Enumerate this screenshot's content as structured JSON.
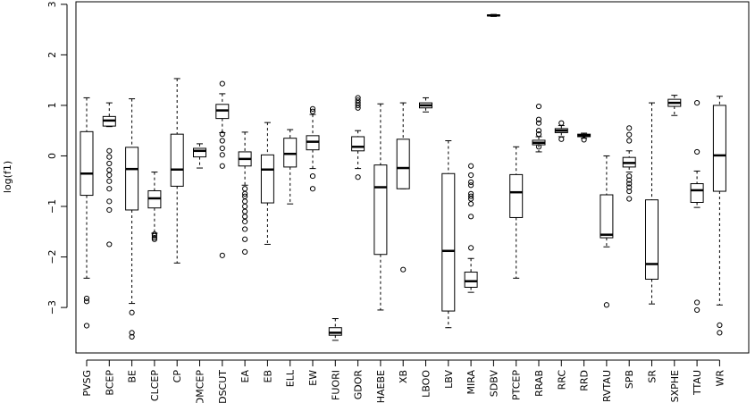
{
  "chart_data": {
    "type": "boxplot",
    "ylabel": "log(f1)",
    "ylim": [
      -3.9,
      3.05
    ],
    "yticks": [
      -3,
      -2,
      -1,
      0,
      1,
      2,
      3
    ],
    "grid": false,
    "categories": [
      "PVSG",
      "BCEP",
      "BE",
      "CLCEP",
      "CP",
      "DMCEP",
      "DSCUT",
      "EA",
      "EB",
      "ELL",
      "EW",
      "FUORI",
      "GDOR",
      "HAEBE",
      "XB",
      "LBOO",
      "LBV",
      "MIRA",
      "SDBV",
      "PTCEP",
      "RRAB",
      "RRC",
      "RRD",
      "RVTAU",
      "SPB",
      "SR",
      "SXPHE",
      "TTAU",
      "WR"
    ],
    "boxes": [
      {
        "lo": -2.42,
        "q1": -0.78,
        "med": -0.35,
        "q3": 0.48,
        "hi": 1.15,
        "out": [
          -2.82,
          -2.88,
          -3.36
        ]
      },
      {
        "lo": 0.58,
        "q1": 0.59,
        "med": 0.7,
        "q3": 0.78,
        "hi": 1.05,
        "out": [
          0.1,
          -0.02,
          -0.15,
          -0.28,
          -0.38,
          -0.5,
          -0.65,
          -0.9,
          -1.07,
          -1.75
        ]
      },
      {
        "lo": -2.92,
        "q1": -1.07,
        "med": -0.26,
        "q3": 0.17,
        "hi": 1.13,
        "out": [
          -3.1,
          -3.5,
          -3.58
        ]
      },
      {
        "lo": -1.53,
        "q1": -1.03,
        "med": -0.84,
        "q3": -0.69,
        "hi": -0.32,
        "out": [
          -1.55,
          -1.58,
          -1.62,
          -1.65
        ]
      },
      {
        "lo": -2.12,
        "q1": -0.6,
        "med": -0.27,
        "q3": 0.43,
        "hi": 1.53,
        "out": []
      },
      {
        "lo": -0.24,
        "q1": -0.02,
        "med": 0.1,
        "q3": 0.15,
        "hi": 0.24,
        "out": []
      },
      {
        "lo": 0.46,
        "q1": 0.74,
        "med": 0.9,
        "q3": 1.02,
        "hi": 1.23,
        "out": [
          1.43,
          0.43,
          0.3,
          0.15,
          0.02,
          -0.2,
          -1.97
        ]
      },
      {
        "lo": -0.58,
        "q1": -0.2,
        "med": -0.06,
        "q3": 0.08,
        "hi": 0.47,
        "out": [
          -0.65,
          -0.75,
          -0.8,
          -0.9,
          -1.0,
          -1.1,
          -1.2,
          -1.3,
          -1.45,
          -1.65,
          -1.9
        ]
      },
      {
        "lo": -1.75,
        "q1": -0.93,
        "med": -0.27,
        "q3": 0.02,
        "hi": 0.66,
        "out": []
      },
      {
        "lo": -0.95,
        "q1": -0.22,
        "med": 0.04,
        "q3": 0.35,
        "hi": 0.52,
        "out": []
      },
      {
        "lo": -0.25,
        "q1": 0.12,
        "med": 0.28,
        "q3": 0.4,
        "hi": 0.82,
        "out": [
          0.93,
          0.88,
          -0.4,
          -0.65
        ]
      },
      {
        "lo": -3.65,
        "q1": -3.55,
        "med": -3.5,
        "q3": -3.4,
        "hi": -3.22,
        "out": []
      },
      {
        "lo": -0.25,
        "q1": 0.1,
        "med": 0.18,
        "q3": 0.38,
        "hi": 0.5,
        "out": [
          1.15,
          1.1,
          1.05,
          1.0,
          0.95,
          -0.42
        ]
      },
      {
        "lo": -3.05,
        "q1": -1.95,
        "med": -0.62,
        "q3": -0.18,
        "hi": 1.03,
        "out": []
      },
      {
        "lo": -0.65,
        "q1": -0.65,
        "med": -0.24,
        "q3": 0.33,
        "hi": 1.05,
        "out": [
          -2.25
        ]
      },
      {
        "lo": 0.87,
        "q1": 0.95,
        "med": 1.0,
        "q3": 1.05,
        "hi": 1.15,
        "out": []
      },
      {
        "lo": -3.4,
        "q1": -3.07,
        "med": -1.88,
        "q3": -0.35,
        "hi": 0.3,
        "out": []
      },
      {
        "lo": -2.7,
        "q1": -2.6,
        "med": -2.48,
        "q3": -2.3,
        "hi": -2.03,
        "out": [
          -0.2,
          -0.38,
          -0.52,
          -0.58,
          -0.75,
          -0.8,
          -0.85,
          -0.95,
          -1.2,
          -1.82
        ]
      },
      {
        "lo": 2.76,
        "q1": 2.77,
        "med": 2.78,
        "q3": 2.79,
        "hi": 2.8,
        "out": []
      },
      {
        "lo": -2.42,
        "q1": -1.22,
        "med": -0.72,
        "q3": -0.37,
        "hi": 0.18,
        "out": []
      },
      {
        "lo": 0.08,
        "q1": 0.22,
        "med": 0.26,
        "q3": 0.31,
        "hi": 0.38,
        "out": [
          0.98,
          0.72,
          0.65,
          0.5,
          0.43,
          0.18
        ]
      },
      {
        "lo": 0.38,
        "q1": 0.46,
        "med": 0.5,
        "q3": 0.54,
        "hi": 0.6,
        "out": [
          0.65,
          0.33
        ]
      },
      {
        "lo": 0.35,
        "q1": 0.38,
        "med": 0.41,
        "q3": 0.43,
        "hi": 0.45,
        "out": [
          0.32
        ]
      },
      {
        "lo": -1.8,
        "q1": -1.62,
        "med": -1.56,
        "q3": -0.77,
        "hi": 0.0,
        "out": [
          -2.95
        ]
      },
      {
        "lo": -0.32,
        "q1": -0.22,
        "med": -0.14,
        "q3": -0.03,
        "hi": 0.1,
        "out": [
          0.55,
          0.42,
          0.3,
          -0.4,
          -0.48,
          -0.55,
          -0.62,
          -0.7,
          -0.85
        ]
      },
      {
        "lo": -2.93,
        "q1": -2.44,
        "med": -2.14,
        "q3": -0.87,
        "hi": 1.05,
        "out": []
      },
      {
        "lo": 0.8,
        "q1": 0.98,
        "med": 1.05,
        "q3": 1.12,
        "hi": 1.2,
        "out": []
      },
      {
        "lo": -1.02,
        "q1": -0.92,
        "med": -0.68,
        "q3": -0.55,
        "hi": -0.3,
        "out": [
          1.05,
          0.08,
          -2.9,
          -3.05
        ]
      },
      {
        "lo": -2.95,
        "q1": -0.7,
        "med": 0.01,
        "q3": 1.0,
        "hi": 1.18,
        "out": [
          -3.35,
          -3.5
        ]
      }
    ]
  }
}
